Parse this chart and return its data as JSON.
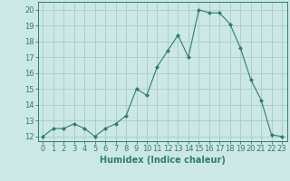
{
  "x": [
    0,
    1,
    2,
    3,
    4,
    5,
    6,
    7,
    8,
    9,
    10,
    11,
    12,
    13,
    14,
    15,
    16,
    17,
    18,
    19,
    20,
    21,
    22,
    23
  ],
  "y": [
    12,
    12.5,
    12.5,
    12.8,
    12.5,
    12.0,
    12.5,
    12.8,
    13.3,
    15.0,
    14.6,
    16.4,
    17.4,
    18.4,
    17.0,
    20.0,
    19.8,
    19.8,
    19.1,
    17.6,
    15.6,
    14.3,
    12.1,
    12.0
  ],
  "line_color": "#2e7d6e",
  "marker": "D",
  "marker_size": 2,
  "bg_color": "#cce8e5",
  "grid_color": "#aacfcc",
  "xlabel": "Humidex (Indice chaleur)",
  "ylabel_ticks": [
    12,
    13,
    14,
    15,
    16,
    17,
    18,
    19,
    20
  ],
  "xlim": [
    -0.5,
    23.5
  ],
  "ylim": [
    11.7,
    20.5
  ],
  "tick_color": "#2e7d6e",
  "label_fontsize": 7,
  "tick_fontsize": 6
}
